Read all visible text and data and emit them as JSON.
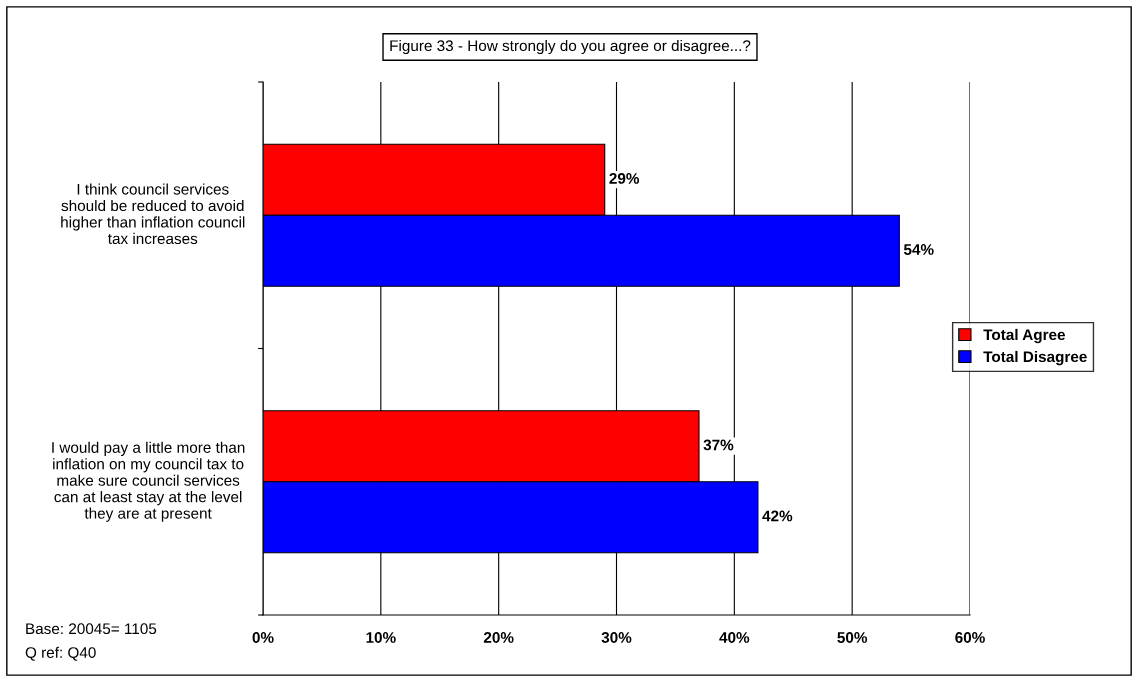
{
  "chart_data": {
    "type": "bar",
    "orientation": "horizontal",
    "title": "Figure 33 - How strongly do you agree or disagree...?",
    "categories": [
      "I think council services\nshould be reduced to avoid\nhigher than inflation council\ntax increases",
      "I would pay a little more than\ninflation on my council tax to\nmake sure council services\ncan at least stay at the level\nthey are at present"
    ],
    "series": [
      {
        "name": "Total Agree",
        "color": "#ff0000",
        "values": [
          29,
          37
        ],
        "value_labels": [
          "29%",
          "37%"
        ]
      },
      {
        "name": "Total Disagree",
        "color": "#0000ff",
        "values": [
          54,
          42
        ],
        "value_labels": [
          "54%",
          "42%"
        ]
      }
    ],
    "xlim": [
      0,
      60
    ],
    "xticks": [
      {
        "value": 0,
        "label": "0%"
      },
      {
        "value": 10,
        "label": "10%"
      },
      {
        "value": 20,
        "label": "20%"
      },
      {
        "value": 30,
        "label": "30%"
      },
      {
        "value": 40,
        "label": "40%"
      },
      {
        "value": 50,
        "label": "50%"
      },
      {
        "value": 60,
        "label": "60%"
      }
    ],
    "grid": "x",
    "legend": "right",
    "annotations": [
      "Base: 20045= 1105",
      "Q ref: Q40"
    ]
  }
}
